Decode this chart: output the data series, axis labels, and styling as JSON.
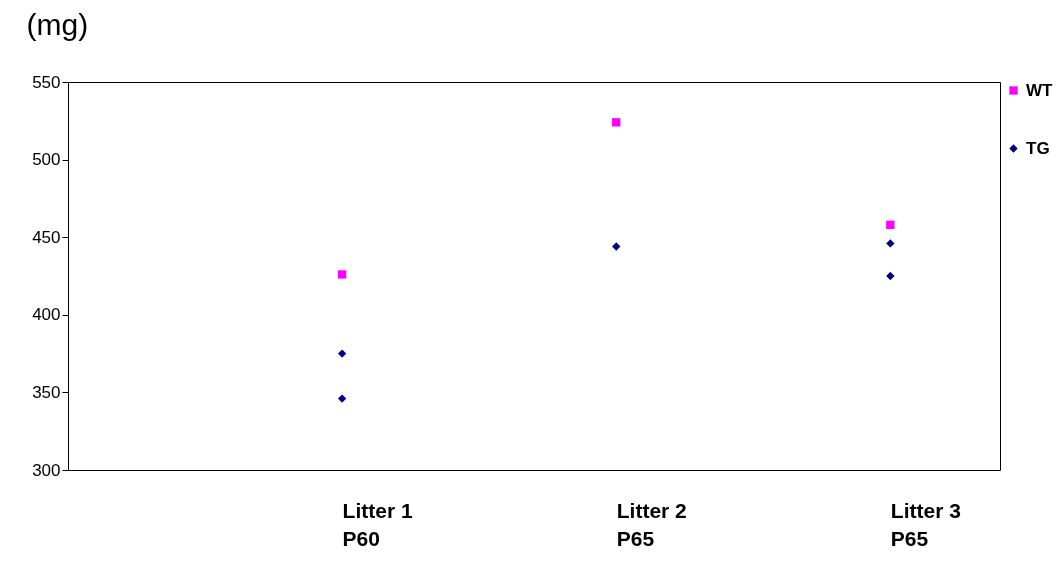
{
  "chart_data": {
    "type": "scatter",
    "ylabel": "(mg)",
    "categories": [
      "Litter 1\nP60",
      "Litter 2\nP65",
      "Litter 3\nP65"
    ],
    "series": [
      {
        "name": "WT",
        "color": "#ff00ff",
        "marker": "square",
        "values": [
          426,
          524,
          458
        ]
      },
      {
        "name": "TG",
        "color": "#000080",
        "marker": "diamond",
        "x": [
          "Litter 1\nP60",
          "Litter 1\nP60",
          "Litter 2\nP65",
          "Litter 3\nP65",
          "Litter 3\nP65"
        ],
        "values": [
          375,
          346,
          444,
          446,
          425
        ]
      }
    ],
    "ylim": [
      300,
      550
    ],
    "yticks": [
      300,
      350,
      400,
      450,
      500,
      550
    ],
    "grid": false,
    "legend": "right"
  }
}
